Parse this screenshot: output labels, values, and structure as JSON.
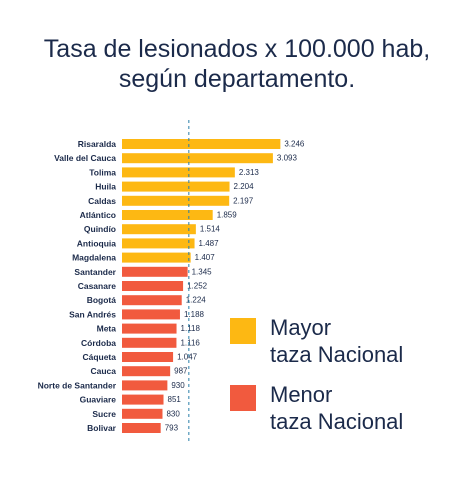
{
  "chart_data": {
    "type": "bar",
    "orientation": "horizontal",
    "title_lines": [
      "Tasa de lesionados x 100.000 hab,",
      "según departamento."
    ],
    "categories": [
      "Risaralda",
      "Valle del Cauca",
      "Tolima",
      "Huila",
      "Caldas",
      "Atlántico",
      "Quindío",
      "Antioquia",
      "Magdalena",
      "Santander",
      "Casanare",
      "Bogotá",
      "San Andrés",
      "Meta",
      "Córdoba",
      "Cáqueta",
      "Cauca",
      "Norte de Santander",
      "Guaviare",
      "Sucre",
      "Bolivar"
    ],
    "values": [
      3246,
      3093,
      2313,
      2204,
      2197,
      1859,
      1514,
      1487,
      1407,
      1345,
      1252,
      1224,
      1188,
      1118,
      1116,
      1047,
      987,
      930,
      851,
      830,
      793
    ],
    "value_labels": [
      "3.246",
      "3.093",
      "2.313",
      "2.204",
      "2.197",
      "1.859",
      "1.514",
      "1.487",
      "1.407",
      "1.345",
      "1.252",
      "1.224",
      "1.188",
      "1.118",
      "1.116",
      "1.047",
      "987",
      "930",
      "851",
      "830",
      "793"
    ],
    "groups": [
      "mayor",
      "mayor",
      "mayor",
      "mayor",
      "mayor",
      "mayor",
      "mayor",
      "mayor",
      "mayor",
      "menor",
      "menor",
      "menor",
      "menor",
      "menor",
      "menor",
      "menor",
      "menor",
      "menor",
      "menor",
      "menor",
      "menor"
    ],
    "reference_line": 1370,
    "xlim": [
      0,
      3300
    ],
    "grid": false,
    "legend": {
      "placement": "right",
      "items": [
        {
          "key": "mayor",
          "lines": [
            "Mayor",
            "taza Nacional"
          ],
          "color": "#fdb813"
        },
        {
          "key": "menor",
          "lines": [
            "Menor",
            "taza Nacional"
          ],
          "color": "#f15a3e"
        }
      ]
    },
    "colors": {
      "mayor": "#fdb813",
      "menor": "#f15a3e",
      "reference": "#2a7fa8",
      "text": "#1b2a4a"
    }
  }
}
